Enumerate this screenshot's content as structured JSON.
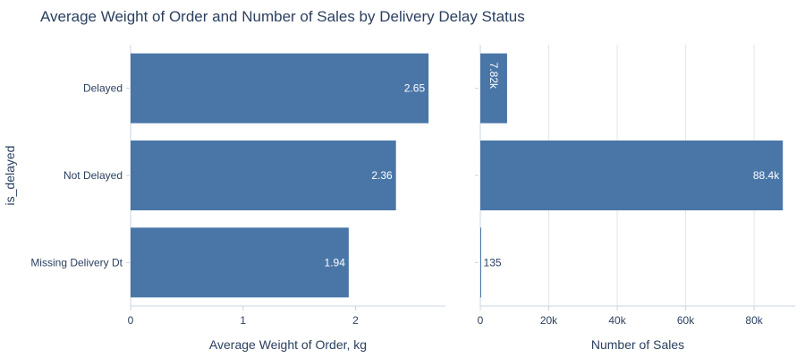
{
  "chart_data": {
    "title": "Average Weight of Order and Number of Sales by Delivery Delay Status",
    "y_axis_title": "is_delayed",
    "categories": [
      "Delayed",
      "Not Delayed",
      "Missing Delivery Dt"
    ],
    "bar_color": "#4a76a7",
    "panels": [
      {
        "type": "bar",
        "orientation": "horizontal",
        "xlabel": "Average Weight of Order, kg",
        "xlim": [
          0,
          2.8
        ],
        "ticks": [
          0,
          1,
          2
        ],
        "tick_labels": [
          "0",
          "1",
          "2"
        ],
        "values": [
          2.65,
          2.36,
          1.94
        ],
        "labels": [
          "2.65",
          "2.36",
          "1.94"
        ],
        "grid": false
      },
      {
        "type": "bar",
        "orientation": "horizontal",
        "xlabel": "Number of Sales",
        "xlim": [
          0,
          92000
        ],
        "ticks": [
          0,
          20000,
          40000,
          60000,
          80000
        ],
        "tick_labels": [
          "0",
          "20k",
          "40k",
          "60k",
          "80k"
        ],
        "values": [
          7820,
          88400,
          135
        ],
        "labels": [
          "7.82k",
          "88.4k",
          "135"
        ],
        "grid": true
      }
    ]
  }
}
